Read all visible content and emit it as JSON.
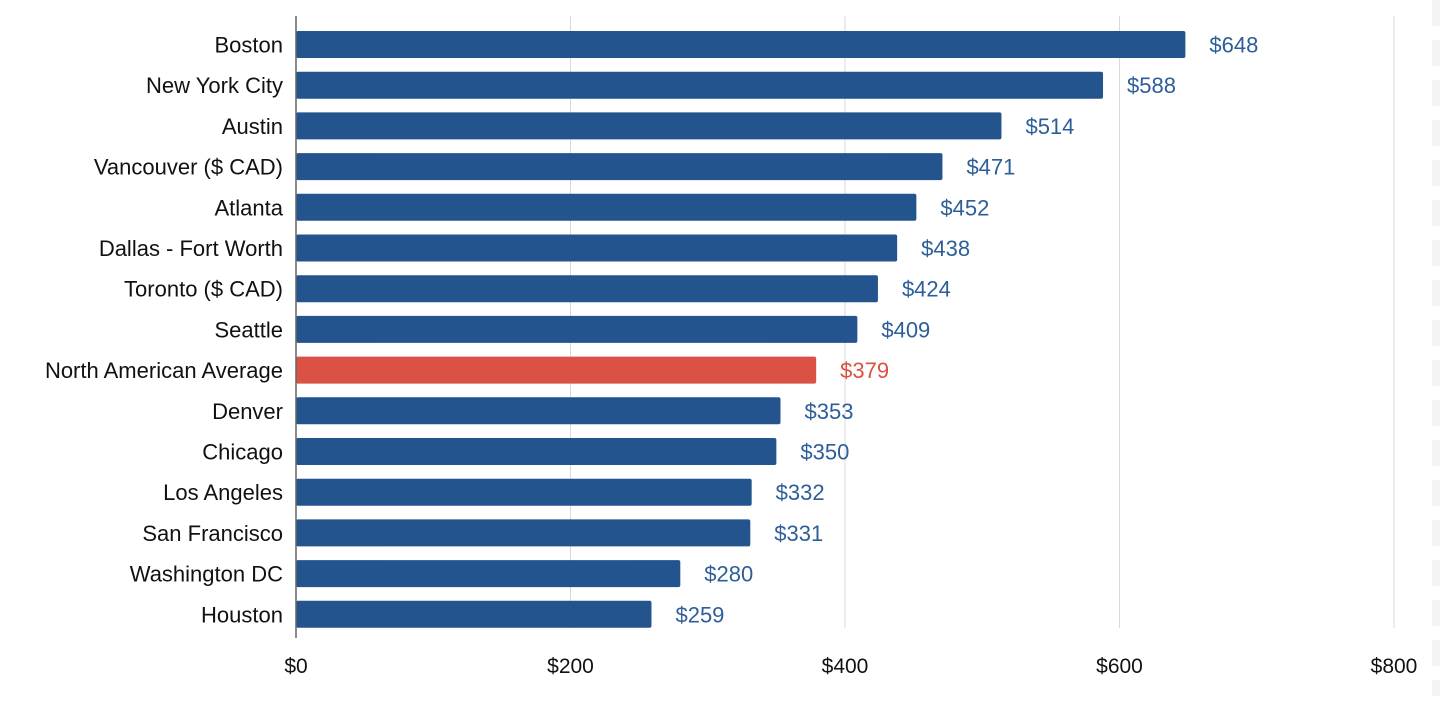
{
  "chart_data": {
    "type": "bar",
    "orientation": "horizontal",
    "categories": [
      "Boston",
      "New York City",
      "Austin",
      "Vancouver ($ CAD)",
      "Atlanta",
      "Dallas - Fort Worth",
      "Toronto ($ CAD)",
      "Seattle",
      "North American Average",
      "Denver",
      "Chicago",
      "Los Angeles",
      "San Francisco",
      "Washington DC",
      "Houston"
    ],
    "values": [
      648,
      588,
      514,
      471,
      452,
      438,
      424,
      409,
      379,
      353,
      350,
      332,
      331,
      280,
      259
    ],
    "value_labels": [
      "$648",
      "$588",
      "$514",
      "$471",
      "$452",
      "$438",
      "$424",
      "$409",
      "$379",
      "$353",
      "$350",
      "$332",
      "$331",
      "$280",
      "$259"
    ],
    "highlight_category": "North American Average",
    "xlim": [
      0,
      800
    ],
    "x_ticks": [
      0,
      200,
      400,
      600,
      800
    ],
    "x_tick_labels": [
      "$0",
      "$200",
      "$400",
      "$600",
      "$800"
    ],
    "title": "",
    "xlabel": "",
    "ylabel": "",
    "grid": true,
    "legend": "none",
    "colors": {
      "bar": "#23548e",
      "highlight_bar": "#d95244",
      "value_label": "#2d5e98",
      "highlight_value_label": "#d95244",
      "grid": "#d9d9d9",
      "axis": "#666666"
    }
  }
}
